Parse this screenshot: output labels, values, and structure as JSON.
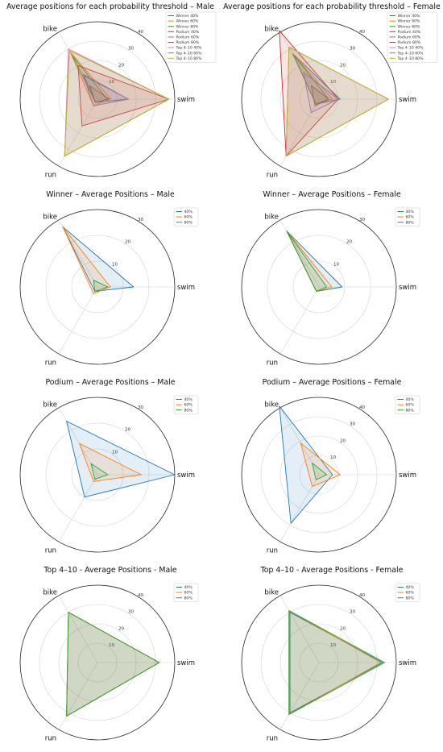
{
  "chart_data": [
    {
      "type": "radar",
      "title": "Average positions for each probability threshold – Male",
      "axes": [
        "swim",
        "bike",
        "run"
      ],
      "rlim": [
        0,
        40
      ],
      "rticks": [
        "10",
        "20",
        "30",
        "40"
      ],
      "grid": true,
      "legend": "top-right",
      "series": [
        {
          "name": "Winner 40%",
          "color": "#1f77b4",
          "values": [
            16,
            14,
            2
          ]
        },
        {
          "name": "Winner 60%",
          "color": "#ff7f0e",
          "values": [
            7,
            28,
            4
          ]
        },
        {
          "name": "Winner 80%",
          "color": "#2ca02c",
          "values": [
            5,
            26,
            2
          ]
        },
        {
          "name": "Podium 40%",
          "color": "#d62728",
          "values": [
            37,
            20,
            16
          ]
        },
        {
          "name": "Podium 60%",
          "color": "#9467bd",
          "values": [
            16,
            15,
            4
          ]
        },
        {
          "name": "Podium 80%",
          "color": "#8c564b",
          "values": [
            6,
            8,
            2
          ]
        },
        {
          "name": "Top 4–10 40%",
          "color": "#e377c2",
          "values": [
            37,
            30,
            34
          ]
        },
        {
          "name": "Top 4–10 60%",
          "color": "#7f7f7f",
          "values": [
            37,
            29,
            34
          ]
        },
        {
          "name": "Top 4–10 80%",
          "color": "#bcbd22",
          "values": [
            37,
            29,
            34
          ]
        }
      ]
    },
    {
      "type": "radar",
      "title": "Average positions for each probability threshold – Female",
      "axes": [
        "swim",
        "bike",
        "run"
      ],
      "rlim": [
        0,
        40
      ],
      "rticks": [
        "10",
        "20",
        "30",
        "40"
      ],
      "grid": true,
      "legend": "top-right",
      "series": [
        {
          "name": "Winner 40%",
          "color": "#1f77b4",
          "values": [
            11,
            27,
            3
          ]
        },
        {
          "name": "Winner 60%",
          "color": "#ff7f0e",
          "values": [
            7,
            27,
            3
          ]
        },
        {
          "name": "Winner 80%",
          "color": "#2ca02c",
          "values": [
            5,
            27,
            3
          ]
        },
        {
          "name": "Podium 40%",
          "color": "#d62728",
          "values": [
            10,
            41,
            34
          ]
        },
        {
          "name": "Podium 60%",
          "color": "#9467bd",
          "values": [
            10,
            16,
            8
          ]
        },
        {
          "name": "Podium 80%",
          "color": "#8c564b",
          "values": [
            5,
            8,
            4
          ]
        },
        {
          "name": "Top 4–10 40%",
          "color": "#e377c2",
          "values": [
            36,
            31,
            34
          ]
        },
        {
          "name": "Top 4–10 60%",
          "color": "#7f7f7f",
          "values": [
            36,
            31,
            34
          ]
        },
        {
          "name": "Top 4–10 80%",
          "color": "#bcbd22",
          "values": [
            36,
            31,
            34
          ]
        }
      ]
    },
    {
      "type": "radar",
      "title": "Winner – Average Positions – Male",
      "axes": [
        "swim",
        "bike",
        "run"
      ],
      "rlim": [
        0,
        30
      ],
      "rticks": [
        "10",
        "20",
        "30"
      ],
      "grid": true,
      "legend": "top-right",
      "series": [
        {
          "name": "40%",
          "color": "#1f77b4",
          "values": [
            14,
            27,
            2
          ]
        },
        {
          "name": "60%",
          "color": "#ff7f0e",
          "values": [
            5,
            27,
            3
          ]
        },
        {
          "name": "80%",
          "color": "#2ca02c",
          "values": [
            4,
            3,
            2
          ]
        }
      ]
    },
    {
      "type": "radar",
      "title": "Winner – Average Positions – Female",
      "axes": [
        "swim",
        "bike",
        "run"
      ],
      "rlim": [
        0,
        30
      ],
      "rticks": [
        "10",
        "20",
        "30"
      ],
      "grid": true,
      "legend": "top-right",
      "series": [
        {
          "name": "40%",
          "color": "#1f77b4",
          "values": [
            9,
            25,
            2
          ]
        },
        {
          "name": "60%",
          "color": "#ff7f0e",
          "values": [
            5,
            25,
            2
          ]
        },
        {
          "name": "80%",
          "color": "#2ca02c",
          "values": [
            3,
            25,
            2
          ]
        }
      ]
    },
    {
      "type": "radar",
      "title": "Podium – Average Positions – Male",
      "axes": [
        "swim",
        "bike",
        "run"
      ],
      "rlim": [
        0,
        30
      ],
      "rticks": [
        "10",
        "20",
        "30"
      ],
      "grid": true,
      "legend": "top-right",
      "series": [
        {
          "name": "40%",
          "color": "#1f77b4",
          "values": [
            30,
            24,
            10
          ]
        },
        {
          "name": "60%",
          "color": "#ff7f0e",
          "values": [
            17,
            14,
            3
          ]
        },
        {
          "name": "80%",
          "color": "#2ca02c",
          "values": [
            4,
            5,
            2
          ]
        }
      ]
    },
    {
      "type": "radar",
      "title": "Podium – Average Positions – Female",
      "axes": [
        "swim",
        "bike",
        "run"
      ],
      "rlim": [
        0,
        40
      ],
      "rticks": [
        "10",
        "20",
        "30",
        "40"
      ],
      "grid": true,
      "legend": "top-right",
      "series": [
        {
          "name": "40%",
          "color": "#1f77b4",
          "values": [
            7,
            41,
            29
          ]
        },
        {
          "name": "60%",
          "color": "#ff7f0e",
          "values": [
            11,
            19,
            7
          ]
        },
        {
          "name": "80%",
          "color": "#2ca02c",
          "values": [
            4,
            7,
            3
          ]
        }
      ]
    },
    {
      "type": "radar",
      "title": "Top 4–10 - Average Positions - Male",
      "axes": [
        "swim",
        "bike",
        "run"
      ],
      "rlim": [
        0,
        40
      ],
      "rticks": [
        "10",
        "20",
        "30",
        "40"
      ],
      "grid": true,
      "legend": "top-right",
      "series": [
        {
          "name": "40%",
          "color": "#1f77b4",
          "values": [
            32,
            30,
            32
          ]
        },
        {
          "name": "60%",
          "color": "#ff7f0e",
          "values": [
            32,
            30,
            32
          ]
        },
        {
          "name": "80%",
          "color": "#2ca02c",
          "values": [
            32,
            30,
            32
          ]
        }
      ]
    },
    {
      "type": "radar",
      "title": "Top 4–10 - Average Positions - Female",
      "axes": [
        "swim",
        "bike",
        "run"
      ],
      "rlim": [
        0,
        40
      ],
      "rticks": [
        "10",
        "20",
        "30",
        "40"
      ],
      "grid": true,
      "legend": "top-right",
      "series": [
        {
          "name": "40%",
          "color": "#1f77b4",
          "values": [
            33,
            30,
            30
          ]
        },
        {
          "name": "60%",
          "color": "#ff7f0e",
          "values": [
            32,
            31,
            31
          ]
        },
        {
          "name": "80%",
          "color": "#2ca02c",
          "values": [
            34,
            31,
            31
          ]
        }
      ]
    }
  ]
}
